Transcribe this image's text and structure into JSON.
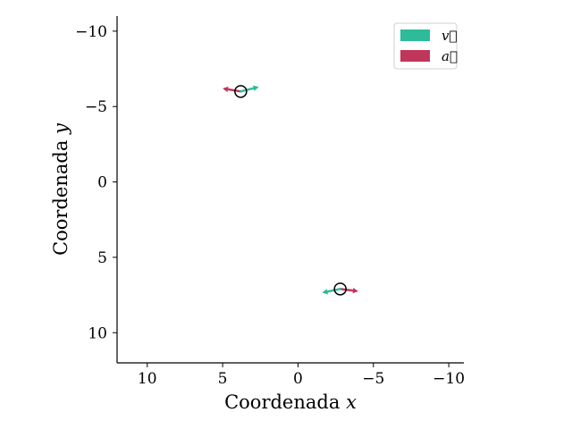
{
  "chart_data": {
    "type": "vector-field",
    "xlabel": "Coordenada $x$",
    "ylabel": "Coordenada $y$",
    "xlabel_text": "Coordenada",
    "xlabel_var": "x",
    "ylabel_text": "Coordenada",
    "ylabel_var": "y",
    "xlim": [
      12,
      -11
    ],
    "ylim": [
      12,
      -11
    ],
    "x_inverted": true,
    "y_inverted": true,
    "xticks": [
      10,
      5,
      0,
      -5,
      -10
    ],
    "yticks": [
      -10,
      -5,
      0,
      5,
      10
    ],
    "xtick_labels": [
      "10",
      "5",
      "0",
      "−5",
      "−10"
    ],
    "ytick_labels": [
      "−10",
      "−5",
      "0",
      "5",
      "10"
    ],
    "grid": false,
    "spines": [
      "left",
      "bottom"
    ],
    "legend": {
      "placement": "top-right",
      "entries": [
        {
          "label": "v⃗",
          "color": "#2dbb9a"
        },
        {
          "label": "a⃗",
          "color": "#c0365a"
        }
      ]
    },
    "bodies": [
      {
        "position": [
          3.8,
          -6.0
        ],
        "velocity": [
          -1.2,
          -0.3
        ],
        "acceleration": [
          1.2,
          -0.2
        ]
      },
      {
        "position": [
          -2.8,
          7.1
        ],
        "velocity": [
          1.2,
          0.25
        ],
        "acceleration": [
          -1.2,
          0.15
        ]
      }
    ],
    "colors": {
      "velocity": "#2dbb9a",
      "acceleration": "#c0365a",
      "body_edge": "#000000",
      "axes": "#000000"
    }
  }
}
